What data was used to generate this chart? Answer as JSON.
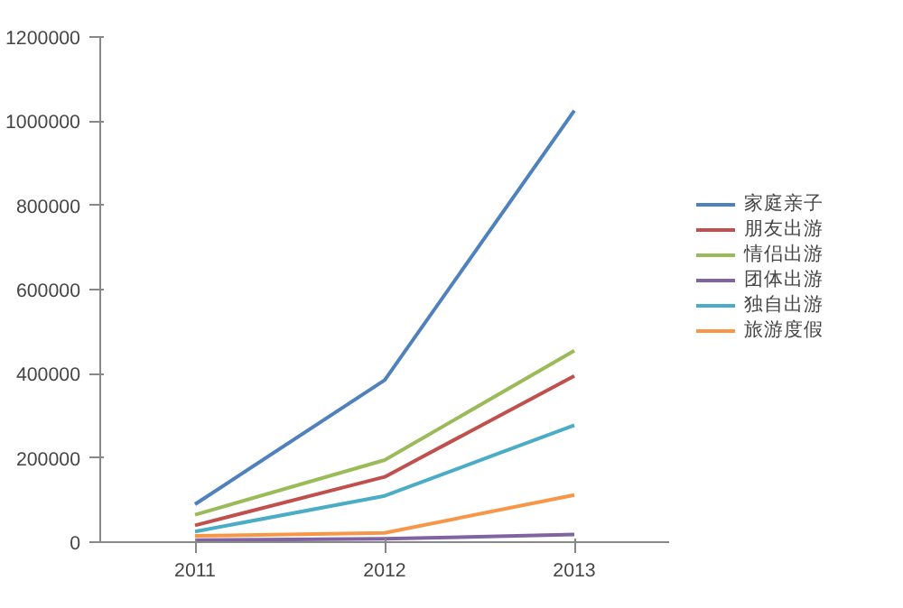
{
  "chart_data": {
    "type": "line",
    "categories": [
      "2011",
      "2012",
      "2013"
    ],
    "series": [
      {
        "name": "家庭亲子",
        "color": "#4f81bd",
        "values": [
          90000,
          385000,
          1025000
        ]
      },
      {
        "name": "朋友出游",
        "color": "#c0504d",
        "values": [
          40000,
          155000,
          395000
        ]
      },
      {
        "name": "情侣出游",
        "color": "#9bbb59",
        "values": [
          65000,
          195000,
          455000
        ]
      },
      {
        "name": "团体出游",
        "color": "#8064a2",
        "values": [
          5000,
          8000,
          18000
        ]
      },
      {
        "name": "独自出游",
        "color": "#4bacc6",
        "values": [
          25000,
          110000,
          278000
        ]
      },
      {
        "name": "旅游度假",
        "color": "#f79646",
        "values": [
          15000,
          22000,
          112000
        ]
      }
    ],
    "ylim": [
      0,
      1200000
    ],
    "yticks": [
      0,
      200000,
      400000,
      600000,
      800000,
      1000000,
      1200000
    ],
    "grid": false,
    "legend": "right",
    "marker": "none",
    "line_style": "solid"
  }
}
